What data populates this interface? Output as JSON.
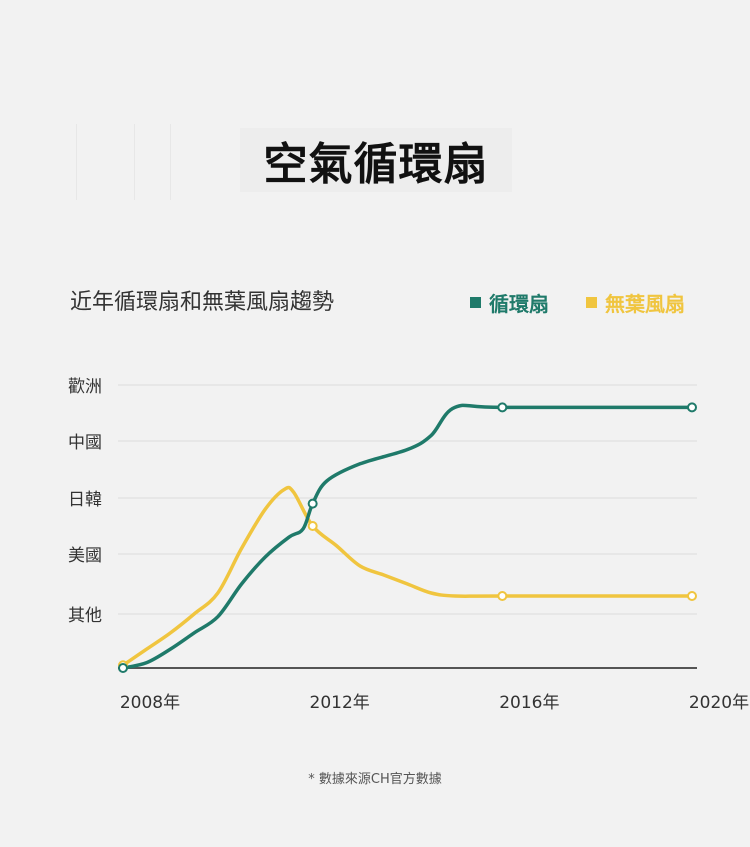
{
  "page": {
    "title": "空氣循環扇",
    "subtitle": "近年循環扇和無葉風扇趨勢",
    "footnote": "* 數據來源CH官方數據"
  },
  "colors": {
    "background": "#f2f2f2",
    "series_1": "#1f7a6a",
    "series_2": "#f0c53f",
    "grid": "#dcdcdc",
    "axis": "#555555"
  },
  "chart_data": {
    "type": "line",
    "title": "近年循環扇和無葉風扇趨勢",
    "xlabel": "",
    "ylabel": "",
    "x_ticks": [
      "2008年",
      "2012年",
      "2016年",
      "2020年"
    ],
    "y_categories": [
      "其他",
      "美國",
      "日韓",
      "中國",
      "歡洲"
    ],
    "xlim": [
      2008,
      2020
    ],
    "ylim": [
      0,
      5
    ],
    "grid": true,
    "legend_position": "top-right",
    "series": [
      {
        "name": "循環扇",
        "color": "#1f7a6a",
        "marker_x": [
          2008,
          2012,
          2016,
          2020
        ],
        "points": [
          [
            2008,
            0.0
          ],
          [
            2008.5,
            0.1
          ],
          [
            2009,
            0.35
          ],
          [
            2009.5,
            0.65
          ],
          [
            2010,
            0.95
          ],
          [
            2010.5,
            1.5
          ],
          [
            2011,
            1.95
          ],
          [
            2011.5,
            2.3
          ],
          [
            2011.8,
            2.45
          ],
          [
            2012,
            2.9
          ],
          [
            2012.3,
            3.3
          ],
          [
            2013,
            3.6
          ],
          [
            2014,
            3.85
          ],
          [
            2014.5,
            4.1
          ],
          [
            2015,
            4.6
          ],
          [
            2016,
            4.6
          ],
          [
            2020,
            4.6
          ]
        ]
      },
      {
        "name": "無葉風扇",
        "color": "#f0c53f",
        "marker_x": [
          2008,
          2012,
          2016,
          2020
        ],
        "points": [
          [
            2008,
            0.05
          ],
          [
            2008.5,
            0.35
          ],
          [
            2009,
            0.65
          ],
          [
            2009.5,
            1.0
          ],
          [
            2010,
            1.35
          ],
          [
            2010.5,
            2.1
          ],
          [
            2011,
            2.8
          ],
          [
            2011.4,
            3.15
          ],
          [
            2011.6,
            3.1
          ],
          [
            2012,
            2.5
          ],
          [
            2012.5,
            2.15
          ],
          [
            2013,
            1.8
          ],
          [
            2013.5,
            1.65
          ],
          [
            2014,
            1.5
          ],
          [
            2014.5,
            1.35
          ],
          [
            2015,
            1.3
          ],
          [
            2016,
            1.3
          ],
          [
            2020,
            1.3
          ]
        ]
      }
    ]
  }
}
